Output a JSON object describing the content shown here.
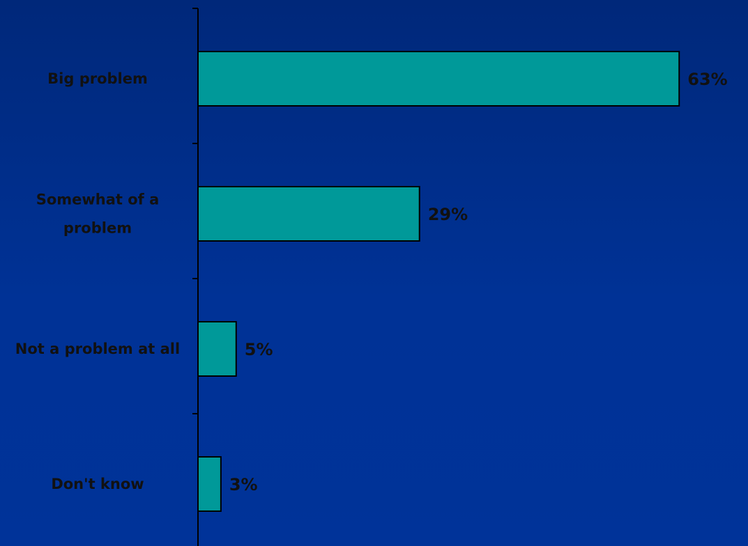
{
  "chart_data": {
    "type": "bar",
    "orientation": "horizontal",
    "categories": [
      "Big problem",
      "Somewhat of a problem",
      "Not a problem at all",
      "Don't know"
    ],
    "category_lines": [
      [
        "Big problem"
      ],
      [
        "Somewhat of a",
        "problem"
      ],
      [
        "Not a problem at all"
      ],
      [
        "Don't know"
      ]
    ],
    "values": [
      63,
      29,
      5,
      3
    ],
    "value_labels": [
      "63%",
      "29%",
      "5%",
      "3%"
    ],
    "title": "",
    "xlabel": "",
    "ylabel": "",
    "xlim": [
      0,
      69
    ],
    "grid": false,
    "legend": "none",
    "colors": {
      "background": "#003399",
      "bar_fill": "#009999",
      "bar_stroke": "#000000",
      "axis": "#000000",
      "text": "#111111"
    }
  }
}
